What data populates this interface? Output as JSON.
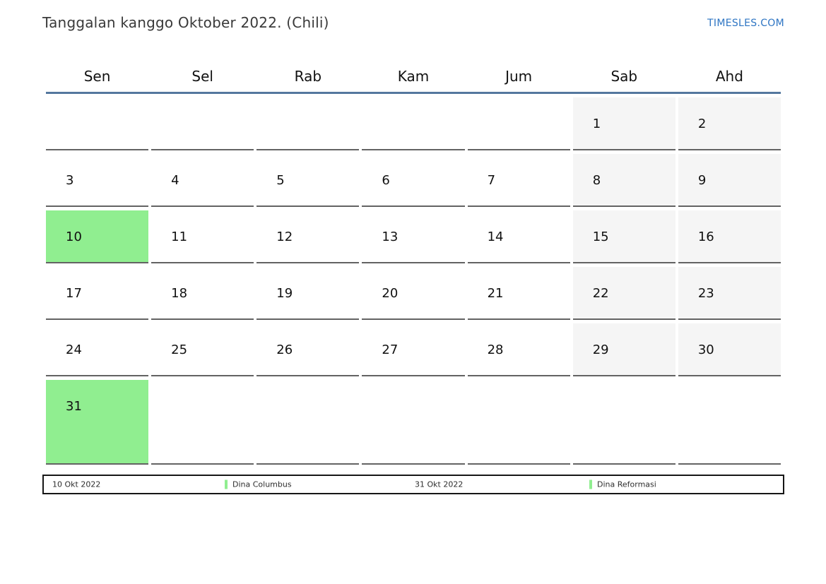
{
  "page": {
    "title": "Tanggalan kanggo Oktober 2022. (Chili)",
    "site_link": "TIMESLES.COM"
  },
  "calendar": {
    "weekdays": [
      "Sen",
      "Sel",
      "Rab",
      "Kam",
      "Jum",
      "Sab",
      "Ahd"
    ],
    "weeks": [
      [
        "",
        "",
        "",
        "",
        "",
        "1",
        "2"
      ],
      [
        "3",
        "4",
        "5",
        "6",
        "7",
        "8",
        "9"
      ],
      [
        "10",
        "11",
        "12",
        "13",
        "14",
        "15",
        "16"
      ],
      [
        "17",
        "18",
        "19",
        "20",
        "21",
        "22",
        "23"
      ],
      [
        "24",
        "25",
        "26",
        "27",
        "28",
        "29",
        "30"
      ],
      [
        "31",
        "",
        "",
        "",
        "",
        "",
        ""
      ]
    ],
    "highlighted_days": [
      "10",
      "31"
    ],
    "colors": {
      "highlight_green": "#90ee90",
      "weekend_bg": "#f5f5f5",
      "header_rule_blue": "#54779e",
      "cell_border": "#636363",
      "link_blue": "#2e75c3"
    }
  },
  "legend": {
    "items": [
      {
        "kind": "date",
        "text": "10 Okt 2022"
      },
      {
        "kind": "holiday",
        "text": "Dina Columbus"
      },
      {
        "kind": "date",
        "text": "31 Okt 2022"
      },
      {
        "kind": "holiday",
        "text": "Dina Reformasi"
      }
    ]
  }
}
